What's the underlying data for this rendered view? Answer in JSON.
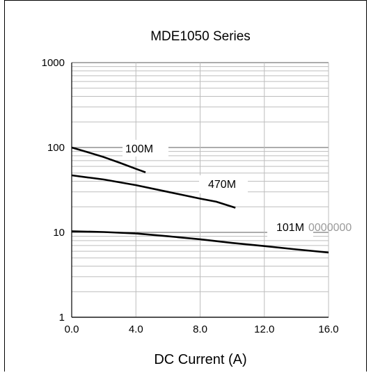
{
  "chart_data": {
    "type": "line",
    "title": "MDE1050 Series",
    "xlabel": "DC Current (A)",
    "ylabel": "",
    "xlim": [
      0,
      16
    ],
    "ylim": [
      1,
      1000
    ],
    "y_scale": "log",
    "grid": true,
    "x_ticks": [
      0,
      4,
      8,
      12,
      16
    ],
    "x_tick_labels": [
      "0.0",
      "4.0",
      "8.0",
      "12.0",
      "16.0"
    ],
    "y_ticks": [
      1,
      10,
      100,
      1000
    ],
    "y_tick_labels": [
      "1",
      "10",
      "100",
      "1000"
    ],
    "series": [
      {
        "name": "100M",
        "color": "#000000",
        "x": [
          0,
          1,
          2,
          3,
          4,
          4.6
        ],
        "y": [
          100,
          88,
          77,
          66,
          56,
          51
        ]
      },
      {
        "name": "470M",
        "color": "#000000",
        "x": [
          0,
          2,
          4,
          6,
          8,
          9,
          10.2
        ],
        "y": [
          47,
          42,
          36,
          30,
          25,
          23,
          19.5
        ]
      },
      {
        "name": "101M",
        "color": "#000000",
        "x": [
          0,
          2,
          4,
          6,
          8,
          10,
          12,
          14,
          16
        ],
        "y": [
          10.3,
          10.1,
          9.7,
          9.0,
          8.3,
          7.5,
          6.9,
          6.3,
          5.8
        ]
      }
    ],
    "annotations": [
      {
        "text": "100M",
        "series": "100M"
      },
      {
        "text": "470M",
        "series": "470M"
      },
      {
        "text": "101M",
        "suffix": "0000000",
        "series": "101M"
      }
    ]
  }
}
